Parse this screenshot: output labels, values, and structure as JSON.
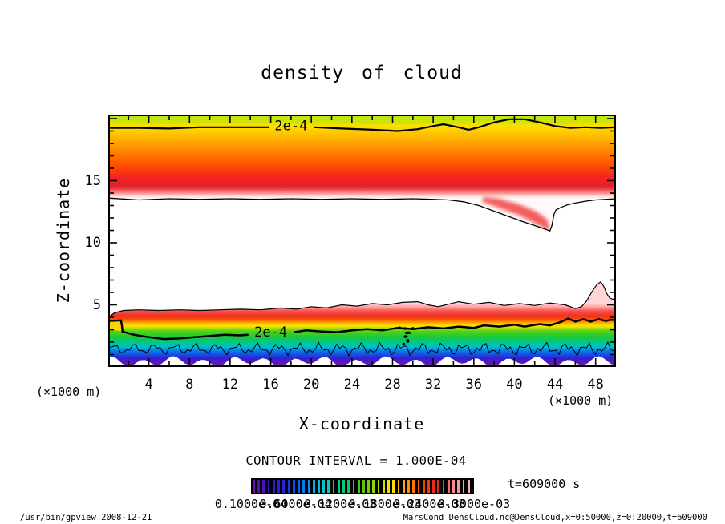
{
  "page": {
    "background": "#ffffff"
  },
  "title": "density of cloud",
  "axes": {
    "x": {
      "label": "X-coordinate",
      "unit": "(×1000 m)",
      "range": [
        0,
        50
      ],
      "major_ticks": [
        4,
        8,
        12,
        16,
        20,
        24,
        28,
        32,
        36,
        40,
        44,
        48
      ],
      "minor_step": 2
    },
    "z": {
      "label": "Z-coordinate",
      "unit": "(×1000 m)",
      "range": [
        0,
        20.3
      ],
      "major_ticks": [
        5,
        10,
        15,
        20
      ],
      "labeled_ticks": [
        5,
        10,
        15
      ],
      "minor_step": 1
    }
  },
  "annotations": {
    "contour_interval": "CONTOUR INTERVAL = 1.000E-04",
    "time_label": "t=609000 s"
  },
  "colorbar": {
    "labels": [
      "0.1000e-04",
      "0.6000e-04",
      "0.1200e-03",
      "0.1800e-03",
      "0.2400e-03",
      "0.3000e-03"
    ],
    "strip_count": 44,
    "key_colors": [
      "#6a0dad",
      "#3a14c8",
      "#1e28e6",
      "#0066ff",
      "#00b4e6",
      "#00d2b4",
      "#00c864",
      "#46c800",
      "#a0dc00",
      "#ffe600",
      "#ff9600",
      "#ff4600",
      "#e62020",
      "#ff8888",
      "#ffaaaa"
    ]
  },
  "footer": {
    "left": "/usr/bin/gpview  2008-12-21",
    "right": "MarsCond_DensCloud.nc@DensCloud,x=0:50000,z=0:20000,t=609000"
  },
  "chart_data": {
    "type": "heatmap",
    "subtype": "filled-contour-xz-cross-section",
    "title": "density of cloud",
    "xlabel": "X-coordinate (×1000 m)",
    "ylabel": "Z-coordinate (×1000 m)",
    "x_range": [
      0,
      50
    ],
    "z_range": [
      0,
      20.3
    ],
    "contour_interval": 0.0001,
    "labeled_contour_text": "2e-4",
    "time_seconds": 609000,
    "upper_band": {
      "description": "upper cloud layer, z ~13 to 20.3 km, max density near z=15",
      "bottom_boundary": [
        [
          0,
          13.6
        ],
        [
          3,
          13.45
        ],
        [
          6,
          13.55
        ],
        [
          9,
          13.5
        ],
        [
          12,
          13.55
        ],
        [
          15,
          13.5
        ],
        [
          18,
          13.55
        ],
        [
          21,
          13.5
        ],
        [
          24,
          13.55
        ],
        [
          27,
          13.5
        ],
        [
          30,
          13.55
        ],
        [
          32,
          13.5
        ],
        [
          33.5,
          13.45
        ],
        [
          35,
          13.3
        ],
        [
          36.5,
          13.0
        ],
        [
          38,
          12.55
        ],
        [
          39.5,
          12.1
        ],
        [
          41,
          11.65
        ],
        [
          42.3,
          11.3
        ],
        [
          43.2,
          11.05
        ],
        [
          43.5,
          10.95
        ],
        [
          43.7,
          11.4
        ],
        [
          43.9,
          12.3
        ],
        [
          44.1,
          12.65
        ],
        [
          44.6,
          12.85
        ],
        [
          45.2,
          13.05
        ],
        [
          46,
          13.2
        ],
        [
          47,
          13.35
        ],
        [
          48,
          13.45
        ],
        [
          49,
          13.5
        ],
        [
          50,
          13.55
        ]
      ],
      "contour_2e4_seg1": [
        [
          0,
          19.25
        ],
        [
          3,
          19.25
        ],
        [
          6,
          19.2
        ],
        [
          9,
          19.3
        ],
        [
          12,
          19.3
        ],
        [
          14,
          19.3
        ],
        [
          15.8,
          19.3
        ]
      ],
      "contour_2e4_seg2": [
        [
          20.3,
          19.3
        ],
        [
          23,
          19.2
        ],
        [
          26,
          19.1
        ],
        [
          28.5,
          19.0
        ],
        [
          30.5,
          19.15
        ],
        [
          32,
          19.4
        ],
        [
          33,
          19.55
        ],
        [
          34.2,
          19.35
        ],
        [
          35.5,
          19.1
        ],
        [
          36.5,
          19.3
        ],
        [
          38,
          19.7
        ],
        [
          39.5,
          19.95
        ],
        [
          41,
          19.95
        ],
        [
          42.5,
          19.7
        ],
        [
          44,
          19.4
        ],
        [
          45.5,
          19.25
        ],
        [
          47,
          19.3
        ],
        [
          48.5,
          19.25
        ],
        [
          50,
          19.3
        ]
      ],
      "label_pos": [
        18,
        19.05
      ],
      "dip_blob": [
        [
          36.8,
          13.3
        ],
        [
          38.5,
          12.8
        ],
        [
          40.5,
          12.2
        ],
        [
          42.2,
          11.5
        ],
        [
          43.2,
          11.05
        ],
        [
          43.5,
          11.2
        ],
        [
          43.2,
          11.9
        ],
        [
          42.2,
          12.5
        ],
        [
          40.5,
          13.1
        ],
        [
          38.5,
          13.55
        ],
        [
          37,
          13.7
        ]
      ],
      "dip_blob_color": "#ef4444",
      "gradient": [
        [
          0,
          "#b9e614"
        ],
        [
          0.1,
          "#d6e300"
        ],
        [
          0.13,
          "#ffdf00"
        ],
        [
          0.24,
          "#ffc000"
        ],
        [
          0.42,
          "#ff8a00"
        ],
        [
          0.6,
          "#ff4f00"
        ],
        [
          0.74,
          "#f62420"
        ],
        [
          0.86,
          "#e1202e"
        ],
        [
          0.9,
          "#ef5a5a"
        ],
        [
          0.94,
          "#fb9c9c"
        ],
        [
          0.97,
          "#ffd9d9"
        ],
        [
          1,
          "#fffafa"
        ]
      ]
    },
    "lower_band": {
      "description": "near-surface cloud layer, z ~0 to 5.3 km, rainbow stratification down to purple at ground",
      "top_boundary": [
        [
          0,
          4.0
        ],
        [
          0.6,
          4.35
        ],
        [
          1.5,
          4.55
        ],
        [
          3,
          4.6
        ],
        [
          5,
          4.55
        ],
        [
          7,
          4.6
        ],
        [
          9,
          4.55
        ],
        [
          11,
          4.6
        ],
        [
          13,
          4.65
        ],
        [
          15,
          4.6
        ],
        [
          17,
          4.75
        ],
        [
          18.5,
          4.65
        ],
        [
          20,
          4.85
        ],
        [
          21.5,
          4.75
        ],
        [
          23,
          5.0
        ],
        [
          24.5,
          4.9
        ],
        [
          26,
          5.1
        ],
        [
          27.5,
          5.0
        ],
        [
          29,
          5.2
        ],
        [
          30.5,
          5.25
        ],
        [
          31.5,
          5.0
        ],
        [
          32.5,
          4.85
        ],
        [
          33.5,
          5.05
        ],
        [
          34.5,
          5.25
        ],
        [
          36,
          5.05
        ],
        [
          37.5,
          5.2
        ],
        [
          39,
          4.95
        ],
        [
          40.5,
          5.1
        ],
        [
          42,
          4.95
        ],
        [
          43.5,
          5.15
        ],
        [
          45,
          5.0
        ],
        [
          46,
          4.7
        ],
        [
          46.6,
          4.85
        ],
        [
          47.1,
          5.3
        ],
        [
          47.6,
          6.0
        ],
        [
          48.1,
          6.6
        ],
        [
          48.5,
          6.85
        ],
        [
          48.8,
          6.5
        ],
        [
          49.1,
          5.9
        ],
        [
          49.4,
          5.55
        ],
        [
          49.7,
          5.45
        ],
        [
          50,
          5.55
        ]
      ],
      "contour_2e4_seg1": [
        [
          0,
          3.7
        ],
        [
          1.25,
          3.75
        ],
        [
          1.35,
          3.3
        ],
        [
          1.4,
          2.85
        ],
        [
          2.5,
          2.6
        ],
        [
          4,
          2.4
        ],
        [
          5.5,
          2.25
        ],
        [
          7,
          2.3
        ],
        [
          8.5,
          2.4
        ],
        [
          10,
          2.5
        ],
        [
          11.5,
          2.6
        ],
        [
          13,
          2.55
        ],
        [
          13.8,
          2.6
        ]
      ],
      "contour_2e4_seg2": [
        [
          18.3,
          2.8
        ],
        [
          19.5,
          2.95
        ],
        [
          21,
          2.85
        ],
        [
          22.5,
          2.8
        ],
        [
          24,
          2.95
        ],
        [
          25.5,
          3.05
        ],
        [
          27,
          2.95
        ],
        [
          28.5,
          3.15
        ],
        [
          30,
          3.05
        ],
        [
          31.5,
          3.2
        ],
        [
          33,
          3.1
        ],
        [
          34.5,
          3.25
        ],
        [
          36,
          3.15
        ],
        [
          37,
          3.35
        ],
        [
          38.5,
          3.25
        ],
        [
          40,
          3.4
        ],
        [
          41,
          3.25
        ],
        [
          42.5,
          3.45
        ],
        [
          43.5,
          3.35
        ],
        [
          44.5,
          3.6
        ],
        [
          45.3,
          3.9
        ],
        [
          46,
          3.65
        ],
        [
          46.8,
          3.85
        ],
        [
          47.5,
          3.65
        ],
        [
          48.3,
          3.85
        ],
        [
          49,
          3.7
        ],
        [
          49.5,
          3.8
        ],
        [
          50,
          3.75
        ]
      ],
      "label_pos": [
        16,
        2.45
      ],
      "yellow_patch": [
        [
          0,
          3.05
        ],
        [
          0.6,
          2.95
        ],
        [
          1.35,
          2.9
        ],
        [
          1.35,
          3.72
        ],
        [
          0,
          3.68
        ]
      ],
      "yellow_patch_color": "#ffd400",
      "dots": [
        [
          29.2,
          3.1,
          3,
          1.6
        ],
        [
          29.5,
          2.75,
          4,
          1.8
        ],
        [
          29.3,
          2.45,
          2.6,
          1.8
        ],
        [
          29.5,
          2.1,
          2,
          2.6
        ],
        [
          29.1,
          1.85,
          1.8,
          1.4
        ],
        [
          28.7,
          3.2,
          1.4,
          1
        ],
        [
          30.0,
          3.15,
          1.5,
          1
        ]
      ],
      "jagged_contour": {
        "base": 1.45,
        "a1": 0.3,
        "f1": 3.1,
        "a2": 0.18,
        "f2": 7.3,
        "a3": 0.1,
        "f3": 13.7
      },
      "bottom_scallop": {
        "base": 0.42,
        "a1": 0.3,
        "f1": 2.1,
        "p1": 0.7,
        "a2": 0.15,
        "f2": 0.9,
        "p2": 2.0,
        "min": 0.05,
        "max": 0.95
      },
      "gradient": [
        [
          0,
          "#ffd6d6"
        ],
        [
          0.06,
          "#ff9a9a"
        ],
        [
          0.12,
          "#f5544c"
        ],
        [
          0.2,
          "#ee2e24"
        ],
        [
          0.26,
          "#fb5300"
        ],
        [
          0.3,
          "#ff9800"
        ],
        [
          0.345,
          "#ffd800"
        ],
        [
          0.375,
          "#e8e600"
        ],
        [
          0.4,
          "#a0dc14"
        ],
        [
          0.45,
          "#50d214"
        ],
        [
          0.55,
          "#14c846"
        ],
        [
          0.63,
          "#00c88c"
        ],
        [
          0.7,
          "#00bed2"
        ],
        [
          0.76,
          "#0082e6"
        ],
        [
          0.83,
          "#1e46e6"
        ],
        [
          0.88,
          "#2828cd"
        ],
        [
          0.93,
          "#5714c0"
        ],
        [
          1,
          "#701ca8"
        ]
      ]
    }
  }
}
